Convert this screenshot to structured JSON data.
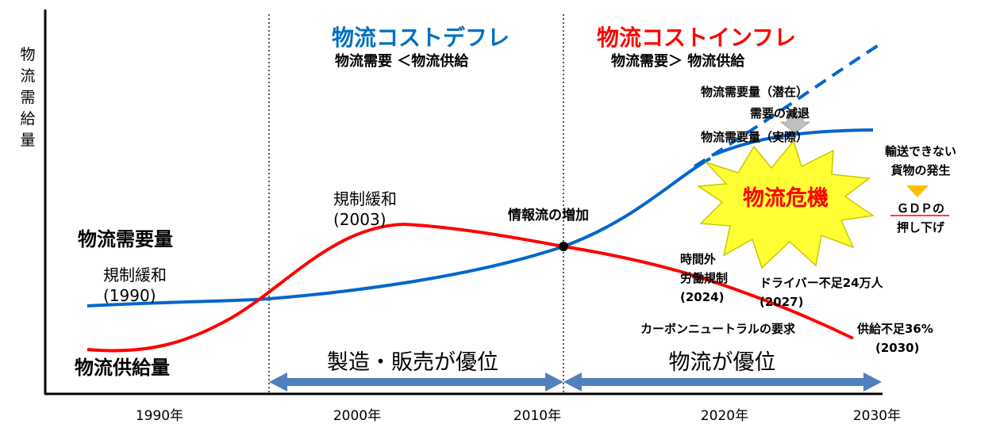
{
  "axis": {
    "y_label": "物流需給量",
    "x_ticks": [
      "1990年",
      "2000年",
      "2010年",
      "2020年",
      "2030年"
    ]
  },
  "periods": {
    "deflation": {
      "title": "物流コストデフレ",
      "subtitle": "物流需要 ＜物流供給",
      "color": "#0070c0"
    },
    "inflation": {
      "title": "物流コストインフレ",
      "subtitle": "物流需要＞ 物流供給",
      "color": "#ff0000"
    }
  },
  "arrows": {
    "manufacturing": "製造・販売が優位",
    "logistics": "物流が優位",
    "color": "#4f81bd"
  },
  "series": {
    "demand": {
      "label": "物流需要量",
      "color": "#0066cc"
    },
    "supply": {
      "label": "物流供給量",
      "color": "#ff0000"
    }
  },
  "annotations": {
    "dereg_1990_line1": "規制緩和",
    "dereg_1990_line2": "(1990)",
    "dereg_2003_line1": "規制緩和",
    "dereg_2003_line2": "(2003)",
    "info_flow": "情報流の増加",
    "potential_demand": "物流需要量（潜在）",
    "demand_decline": "需要の減退",
    "actual_demand": "物流需要量（実際）",
    "crisis": "物流危機",
    "cannot_transport_line1": "輸送できない",
    "cannot_transport_line2": "貨物の発生",
    "gdp_line1": "ＧＤＰの",
    "gdp_line2": "押し下げ",
    "overtime_line1": "時間外",
    "overtime_line2": "労働規制",
    "overtime_line3": "(2024)",
    "driver_shortage_line1": "ドライバー不足24万人",
    "driver_shortage_line2": "(2027)",
    "carbon_neutral": "カーボンニュートラルの要求",
    "supply_shortage_line1": "供給不足36%",
    "supply_shortage_line2": "(2030)"
  }
}
